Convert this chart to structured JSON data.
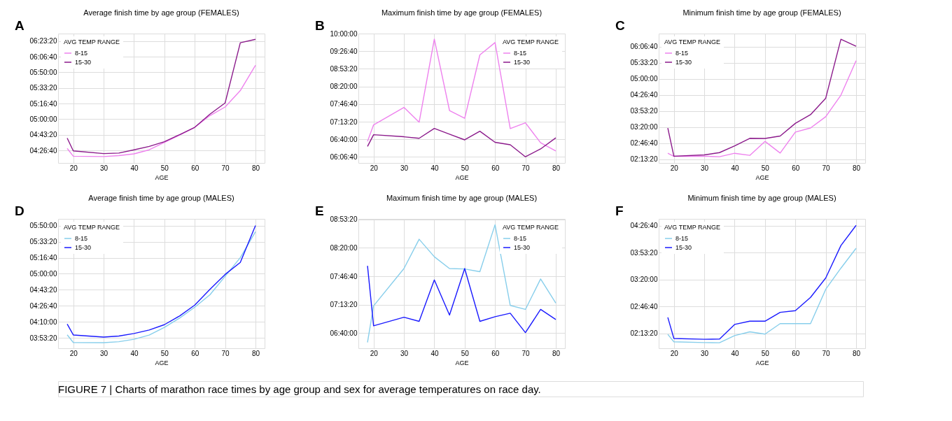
{
  "chart_data": [
    {
      "type": "line",
      "title": "Average finish time by age group (FEMALES)",
      "xlabel": "AGE",
      "legend_title": "AVG TEMP RANGE",
      "legend": "top left",
      "grid": true,
      "annotations": [
        "A",
        "FIGURE 7 | Charts of marathon race times by age group and sex for average temperatures on race day."
      ],
      "x": [
        18,
        20,
        30,
        35,
        40,
        45,
        50,
        55,
        60,
        65,
        70,
        75,
        80
      ],
      "xlim": [
        15,
        83
      ],
      "xticks": [
        20,
        30,
        40,
        50,
        60,
        70,
        80
      ],
      "ylim": [
        15200,
        23480
      ],
      "yticks": [
        {
          "value": 16000,
          "label": "04:26:40"
        },
        {
          "value": 17000,
          "label": "04:43:20"
        },
        {
          "value": 18000,
          "label": "05:00:00"
        },
        {
          "value": 19000,
          "label": "05:16:40"
        },
        {
          "value": 20000,
          "label": "05:33:20"
        },
        {
          "value": 21000,
          "label": "05:50:00"
        },
        {
          "value": 22000,
          "label": "06:06:40"
        },
        {
          "value": 23000,
          "label": "06:23:20"
        }
      ],
      "series": [
        {
          "name": "8-15",
          "color": "#ee82ee",
          "values": [
            16130,
            15630,
            15610,
            15670,
            15780,
            16040,
            16520,
            16980,
            17480,
            18230,
            18780,
            19830,
            21450
          ]
        },
        {
          "name": "15-30",
          "color": "#8b1a8b",
          "values": [
            16790,
            15970,
            15800,
            15830,
            16040,
            16260,
            16560,
            17010,
            17480,
            18320,
            19040,
            22890,
            23110
          ]
        }
      ]
    },
    {
      "type": "line",
      "title": "Maximum finish time by age group (FEMALES)",
      "xlabel": "AGE",
      "legend_title": "AVG TEMP RANGE",
      "legend": "top right",
      "grid": true,
      "annotations": [
        "B"
      ],
      "x": [
        18,
        20,
        30,
        35,
        40,
        45,
        50,
        55,
        60,
        65,
        70,
        75,
        80
      ],
      "xlim": [
        15,
        83
      ],
      "xticks": [
        20,
        30,
        40,
        50,
        60,
        70,
        80
      ],
      "ylim": [
        21320,
        36000
      ],
      "yticks": [
        {
          "value": 22000,
          "label": "06:06:40"
        },
        {
          "value": 24000,
          "label": "06:40:00"
        },
        {
          "value": 26000,
          "label": "07:13:20"
        },
        {
          "value": 28000,
          "label": "07:46:40"
        },
        {
          "value": 30000,
          "label": "08:20:00"
        },
        {
          "value": 32000,
          "label": "08:53:20"
        },
        {
          "value": 34000,
          "label": "09:26:40"
        },
        {
          "value": 36000,
          "label": "10:00:00"
        }
      ],
      "series": [
        {
          "name": "8-15",
          "color": "#ee82ee",
          "values": [
            23770,
            25640,
            27620,
            25940,
            35370,
            27270,
            26390,
            33580,
            34980,
            25220,
            25870,
            23610,
            22680
          ]
        },
        {
          "name": "15-30",
          "color": "#8b1a8b",
          "values": [
            23190,
            24520,
            24290,
            24120,
            25240,
            24590,
            23940,
            24920,
            23660,
            23380,
            22020,
            22910,
            24170
          ]
        }
      ]
    },
    {
      "type": "line",
      "title": "Minimum finish time by age group (FEMALES)",
      "xlabel": "AGE",
      "legend_title": "AVG TEMP RANGE",
      "legend": "top left",
      "grid": true,
      "annotations": [
        "C"
      ],
      "x": [
        18,
        20,
        30,
        35,
        40,
        45,
        50,
        55,
        60,
        65,
        70,
        75,
        80
      ],
      "xlim": [
        15,
        83
      ],
      "xticks": [
        20,
        30,
        40,
        50,
        60,
        70,
        80
      ],
      "ylim": [
        7540,
        23610
      ],
      "yticks": [
        {
          "value": 8000,
          "label": "02:13:20"
        },
        {
          "value": 10000,
          "label": "02:46:40"
        },
        {
          "value": 12000,
          "label": "03:20:00"
        },
        {
          "value": 14000,
          "label": "03:53:20"
        },
        {
          "value": 16000,
          "label": "04:26:40"
        },
        {
          "value": 18000,
          "label": "05:00:00"
        },
        {
          "value": 20000,
          "label": "05:33:20"
        },
        {
          "value": 22000,
          "label": "06:06:40"
        }
      ],
      "series": [
        {
          "name": "8-15",
          "color": "#ee82ee",
          "values": [
            8740,
            8360,
            8380,
            8310,
            8740,
            8480,
            10220,
            8770,
            11370,
            11880,
            13280,
            15960,
            20240
          ]
        },
        {
          "name": "15-30",
          "color": "#8b1a8b",
          "values": [
            11880,
            8380,
            8540,
            8820,
            9660,
            10600,
            10580,
            10880,
            12460,
            13540,
            15580,
            22900,
            22030
          ]
        }
      ]
    },
    {
      "type": "line",
      "title": "Average finish time by age group (MALES)",
      "xlabel": "AGE",
      "legend_title": "AVG TEMP RANGE",
      "legend": "top left",
      "grid": true,
      "annotations": [
        "D"
      ],
      "x": [
        18,
        20,
        30,
        35,
        40,
        45,
        50,
        55,
        60,
        65,
        70,
        75,
        80
      ],
      "xlim": [
        15,
        83
      ],
      "xticks": [
        20,
        30,
        40,
        50,
        60,
        70,
        80
      ],
      "ylim": [
        13360,
        21420
      ],
      "yticks": [
        {
          "value": 14000,
          "label": "03:53:20"
        },
        {
          "value": 15000,
          "label": "04:10:00"
        },
        {
          "value": 16000,
          "label": "04:26:40"
        },
        {
          "value": 17000,
          "label": "04:43:20"
        },
        {
          "value": 18000,
          "label": "05:00:00"
        },
        {
          "value": 19000,
          "label": "05:16:40"
        },
        {
          "value": 20000,
          "label": "05:33:20"
        },
        {
          "value": 21000,
          "label": "05:50:00"
        }
      ],
      "series": [
        {
          "name": "8-15",
          "color": "#87ceeb",
          "values": [
            14200,
            13720,
            13710,
            13770,
            13920,
            14180,
            14660,
            15240,
            15920,
            16690,
            17840,
            19010,
            20620
          ]
        },
        {
          "name": "15-30",
          "color": "#1a1aff",
          "values": [
            14870,
            14190,
            14060,
            14120,
            14280,
            14500,
            14830,
            15370,
            16050,
            17030,
            17960,
            18710,
            21010
          ]
        }
      ]
    },
    {
      "type": "line",
      "title": "Maximum finish time by age group (MALES)",
      "xlabel": "AGE",
      "legend_title": "AVG TEMP RANGE",
      "legend": "top right",
      "grid": true,
      "annotations": [
        "E"
      ],
      "x": [
        18,
        20,
        30,
        35,
        40,
        45,
        50,
        55,
        60,
        65,
        70,
        75,
        80
      ],
      "xlim": [
        15,
        83
      ],
      "xticks": [
        20,
        30,
        40,
        50,
        60,
        70,
        80
      ],
      "ylim": [
        22940,
        32030
      ],
      "yticks": [
        {
          "value": 24000,
          "label": "06:40:00"
        },
        {
          "value": 26000,
          "label": "07:13:20"
        },
        {
          "value": 28000,
          "label": "07:46:40"
        },
        {
          "value": 30000,
          "label": "08:20:00"
        },
        {
          "value": 32000,
          "label": "08:53:20"
        }
      ],
      "series": [
        {
          "name": "8-15",
          "color": "#87ceeb",
          "values": [
            23350,
            25920,
            28540,
            30600,
            29370,
            28540,
            28510,
            28320,
            31620,
            25950,
            25670,
            27810,
            26110
          ]
        },
        {
          "name": "15-30",
          "color": "#1a1aff",
          "values": [
            28730,
            24520,
            25120,
            24830,
            27740,
            25270,
            28540,
            24830,
            25160,
            25400,
            24040,
            25670,
            24960
          ]
        }
      ]
    },
    {
      "type": "line",
      "title": "Minimum finish time by age group (MALES)",
      "xlabel": "AGE",
      "legend_title": "AVG TEMP RANGE",
      "legend": "top left",
      "grid": true,
      "annotations": [
        "F"
      ],
      "x": [
        18,
        20,
        30,
        35,
        40,
        45,
        50,
        55,
        60,
        65,
        70,
        75,
        80
      ],
      "xlim": [
        15,
        83
      ],
      "xticks": [
        20,
        30,
        40,
        50,
        60,
        70,
        80
      ],
      "ylim": [
        6890,
        16500
      ],
      "yticks": [
        {
          "value": 8000,
          "label": "02:13:20"
        },
        {
          "value": 10000,
          "label": "02:46:40"
        },
        {
          "value": 12000,
          "label": "03:20:00"
        },
        {
          "value": 14000,
          "label": "03:53:20"
        },
        {
          "value": 16000,
          "label": "04:26:40"
        }
      ],
      "series": [
        {
          "name": "8-15",
          "color": "#87ceeb",
          "values": [
            7920,
            7370,
            7310,
            7300,
            7830,
            8110,
            7940,
            8720,
            8720,
            8720,
            11270,
            12840,
            14320
          ]
        },
        {
          "name": "15-30",
          "color": "#1a1aff",
          "values": [
            9180,
            7620,
            7560,
            7570,
            8660,
            8900,
            8900,
            9560,
            9680,
            10670,
            12110,
            14520,
            16020
          ]
        }
      ]
    }
  ]
}
